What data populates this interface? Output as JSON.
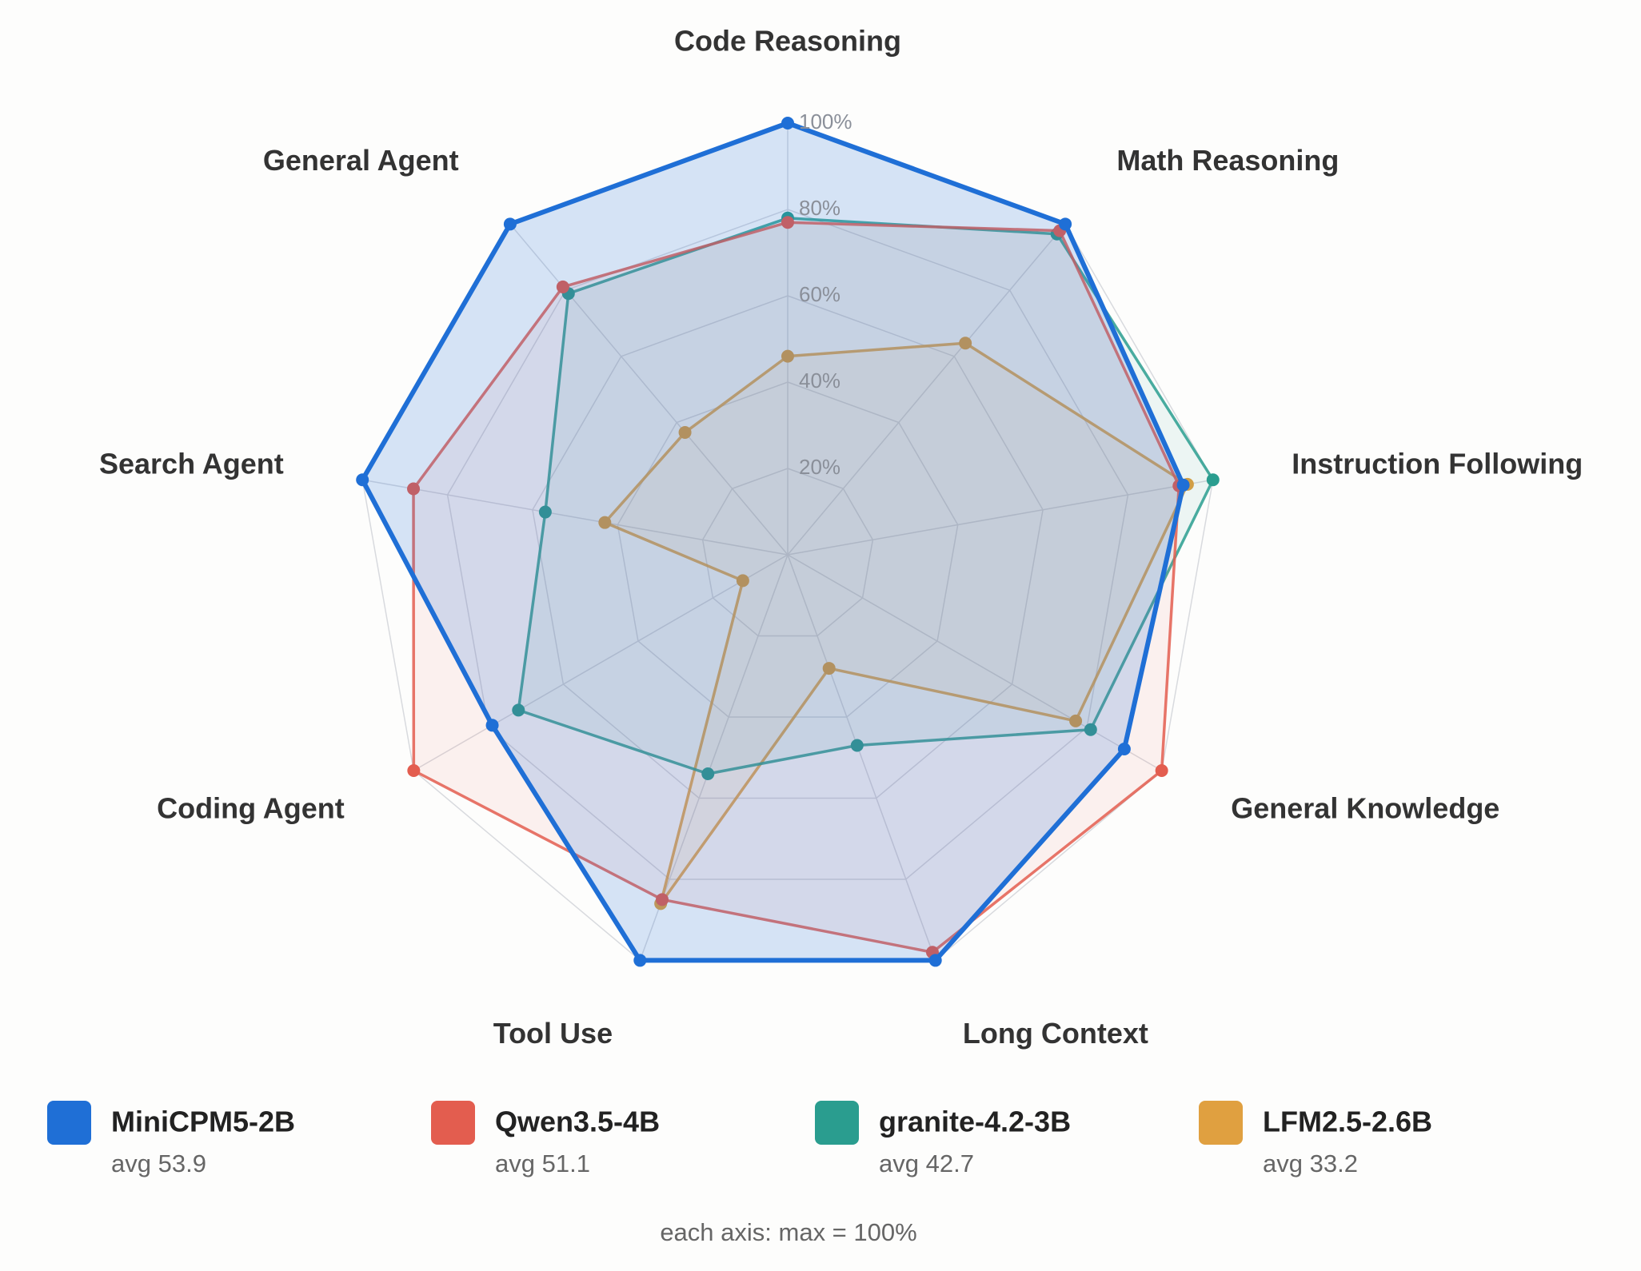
{
  "chart_data": {
    "type": "radar",
    "categories": [
      "Code Reasoning",
      "Math Reasoning",
      "Instruction Following",
      "General Knowledge",
      "Long Context",
      "Tool Use",
      "Coding Agent",
      "Search Agent",
      "General Agent"
    ],
    "rlim": [
      0,
      100
    ],
    "rticks": [
      {
        "value": 20,
        "label": "20%"
      },
      {
        "value": 40,
        "label": "40%"
      },
      {
        "value": 60,
        "label": "60%"
      },
      {
        "value": 80,
        "label": "80%"
      },
      {
        "value": 100,
        "label": "100%"
      }
    ],
    "grid": true,
    "series": [
      {
        "name": "MiniCPM5-2B",
        "subtitle": "avg 53.9",
        "color": "#1f6fd6",
        "values": [
          100,
          100,
          93,
          90,
          100,
          100,
          79,
          100,
          100
        ]
      },
      {
        "name": "Qwen3.5-4B",
        "subtitle": "avg 51.1",
        "color": "#e35d4f",
        "values": [
          77,
          98,
          92,
          100,
          98,
          85,
          100,
          88,
          81
        ]
      },
      {
        "name": "granite-4.2-3B",
        "subtitle": "avg 42.7",
        "color": "#2a9d8f",
        "values": [
          78,
          97,
          100,
          81,
          47,
          54,
          72,
          57,
          79
        ]
      },
      {
        "name": "LFM2.5-2.6B",
        "subtitle": "avg 33.2",
        "color": "#e0a040",
        "values": [
          46,
          64,
          94,
          77,
          28,
          86,
          12,
          43,
          37
        ]
      }
    ],
    "note": "each axis: max = 100%"
  }
}
